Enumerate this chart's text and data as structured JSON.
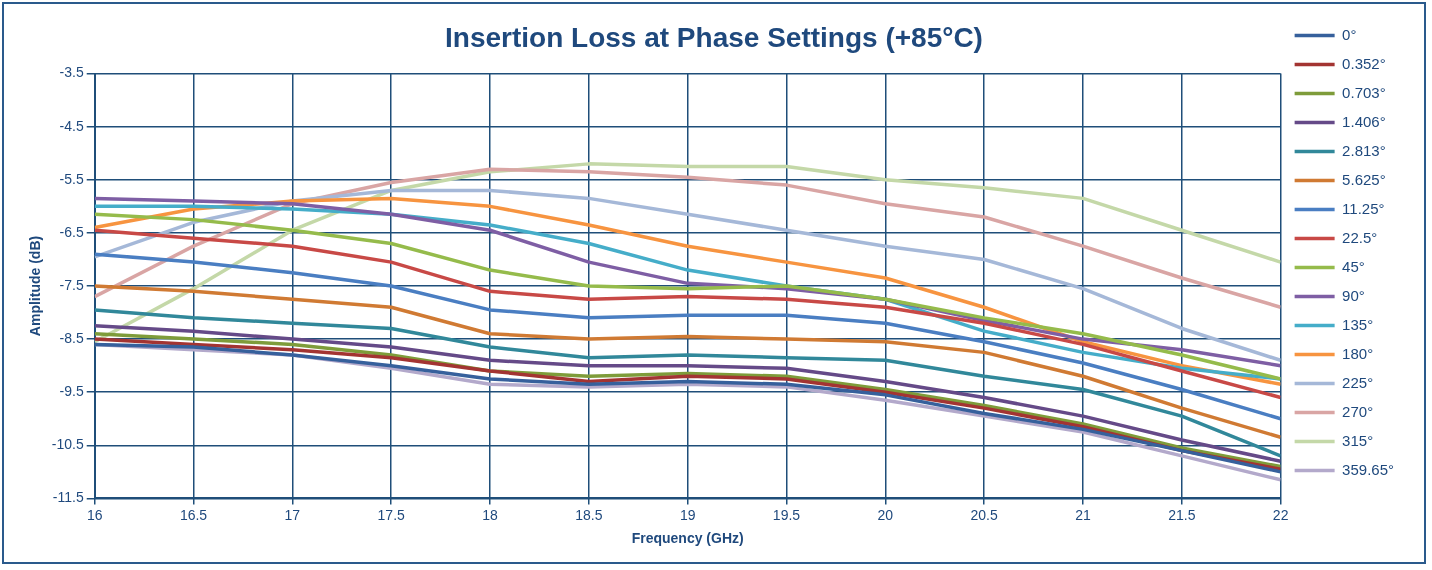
{
  "chart_data": {
    "type": "line",
    "title": "Insertion Loss at Phase Settings (+85°C)",
    "xlabel": "Frequency (GHz)",
    "ylabel": "Amplitude (dB)",
    "x": [
      16,
      16.5,
      17,
      17.5,
      18,
      18.5,
      19,
      19.5,
      20,
      20.5,
      21,
      21.5,
      22
    ],
    "xlim": [
      16,
      22
    ],
    "xticks": [
      16,
      16.5,
      17,
      17.5,
      18,
      18.5,
      19,
      19.5,
      20,
      20.5,
      21,
      21.5,
      22
    ],
    "ylim": [
      -11.5,
      -3.5
    ],
    "yticks": [
      -11.5,
      -10.5,
      -9.5,
      -8.5,
      -7.5,
      -6.5,
      -5.5,
      -4.5,
      -3.5
    ],
    "grid": true,
    "legend": "right",
    "marker": "none",
    "line_style": "solid",
    "series": [
      {
        "name": "0°",
        "color": "#36609c",
        "values": [
          -8.6,
          -8.65,
          -8.8,
          -9.0,
          -9.25,
          -9.35,
          -9.3,
          -9.35,
          -9.55,
          -9.9,
          -10.2,
          -10.6,
          -11.0
        ]
      },
      {
        "name": "0.352°",
        "color": "#a33432",
        "values": [
          -8.5,
          -8.6,
          -8.7,
          -8.85,
          -9.1,
          -9.3,
          -9.2,
          -9.25,
          -9.5,
          -9.8,
          -10.15,
          -10.6,
          -10.95
        ]
      },
      {
        "name": "0.703°",
        "color": "#7e9c3a",
        "values": [
          -8.4,
          -8.5,
          -8.6,
          -8.8,
          -9.1,
          -9.2,
          -9.15,
          -9.2,
          -9.45,
          -9.75,
          -10.1,
          -10.55,
          -10.9
        ]
      },
      {
        "name": "1.406°",
        "color": "#654a88",
        "values": [
          -8.25,
          -8.35,
          -8.5,
          -8.65,
          -8.9,
          -9.0,
          -9.0,
          -9.05,
          -9.3,
          -9.6,
          -9.95,
          -10.4,
          -10.8
        ]
      },
      {
        "name": "2.813°",
        "color": "#31889a",
        "values": [
          -7.95,
          -8.1,
          -8.2,
          -8.3,
          -8.65,
          -8.85,
          -8.8,
          -8.85,
          -8.9,
          -9.2,
          -9.45,
          -9.95,
          -10.7
        ]
      },
      {
        "name": "5.625°",
        "color": "#d07a33",
        "values": [
          -7.5,
          -7.6,
          -7.75,
          -7.9,
          -8.4,
          -8.5,
          -8.45,
          -8.5,
          -8.55,
          -8.75,
          -9.2,
          -9.8,
          -10.35
        ]
      },
      {
        "name": "11.25°",
        "color": "#4a7ec2",
        "values": [
          -6.9,
          -7.05,
          -7.25,
          -7.5,
          -7.95,
          -8.1,
          -8.05,
          -8.05,
          -8.2,
          -8.55,
          -8.95,
          -9.45,
          -10.0
        ]
      },
      {
        "name": "22.5°",
        "color": "#c84946",
        "values": [
          -6.45,
          -6.6,
          -6.75,
          -7.05,
          -7.6,
          -7.75,
          -7.7,
          -7.75,
          -7.9,
          -8.2,
          -8.6,
          -9.1,
          -9.6
        ]
      },
      {
        "name": "45°",
        "color": "#95bb4b",
        "values": [
          -6.15,
          -6.25,
          -6.45,
          -6.7,
          -7.2,
          -7.5,
          -7.55,
          -7.5,
          -7.75,
          -8.1,
          -8.4,
          -8.8,
          -9.25
        ]
      },
      {
        "name": "90°",
        "color": "#7e5ea4",
        "values": [
          -5.85,
          -5.9,
          -5.95,
          -6.15,
          -6.45,
          -7.05,
          -7.45,
          -7.55,
          -7.75,
          -8.15,
          -8.5,
          -8.7,
          -9.0
        ]
      },
      {
        "name": "135°",
        "color": "#45adc9",
        "values": [
          -6.0,
          -6.0,
          -6.05,
          -6.15,
          -6.35,
          -6.7,
          -7.2,
          -7.5,
          -7.75,
          -8.35,
          -8.75,
          -9.05,
          -9.25
        ]
      },
      {
        "name": "180°",
        "color": "#f79440",
        "values": [
          -6.4,
          -6.05,
          -5.9,
          -5.85,
          -6.0,
          -6.35,
          -6.75,
          -7.05,
          -7.35,
          -7.9,
          -8.55,
          -9.0,
          -9.35
        ]
      },
      {
        "name": "225°",
        "color": "#a5b8d8",
        "values": [
          -6.95,
          -6.3,
          -5.9,
          -5.7,
          -5.7,
          -5.85,
          -6.15,
          -6.45,
          -6.75,
          -7.0,
          -7.55,
          -8.3,
          -8.9
        ]
      },
      {
        "name": "270°",
        "color": "#d9a5a4",
        "values": [
          -7.7,
          -6.75,
          -5.95,
          -5.55,
          -5.3,
          -5.35,
          -5.45,
          -5.6,
          -5.95,
          -6.2,
          -6.75,
          -7.35,
          -7.9
        ]
      },
      {
        "name": "315°",
        "color": "#c4d8a8",
        "values": [
          -8.55,
          -7.55,
          -6.45,
          -5.7,
          -5.35,
          -5.2,
          -5.25,
          -5.25,
          -5.5,
          -5.65,
          -5.85,
          -6.45,
          -7.05
        ]
      },
      {
        "name": "359.65°",
        "color": "#b3a9cb",
        "values": [
          -8.6,
          -8.7,
          -8.8,
          -9.05,
          -9.35,
          -9.4,
          -9.35,
          -9.4,
          -9.65,
          -9.95,
          -10.25,
          -10.7,
          -11.15
        ]
      }
    ]
  }
}
